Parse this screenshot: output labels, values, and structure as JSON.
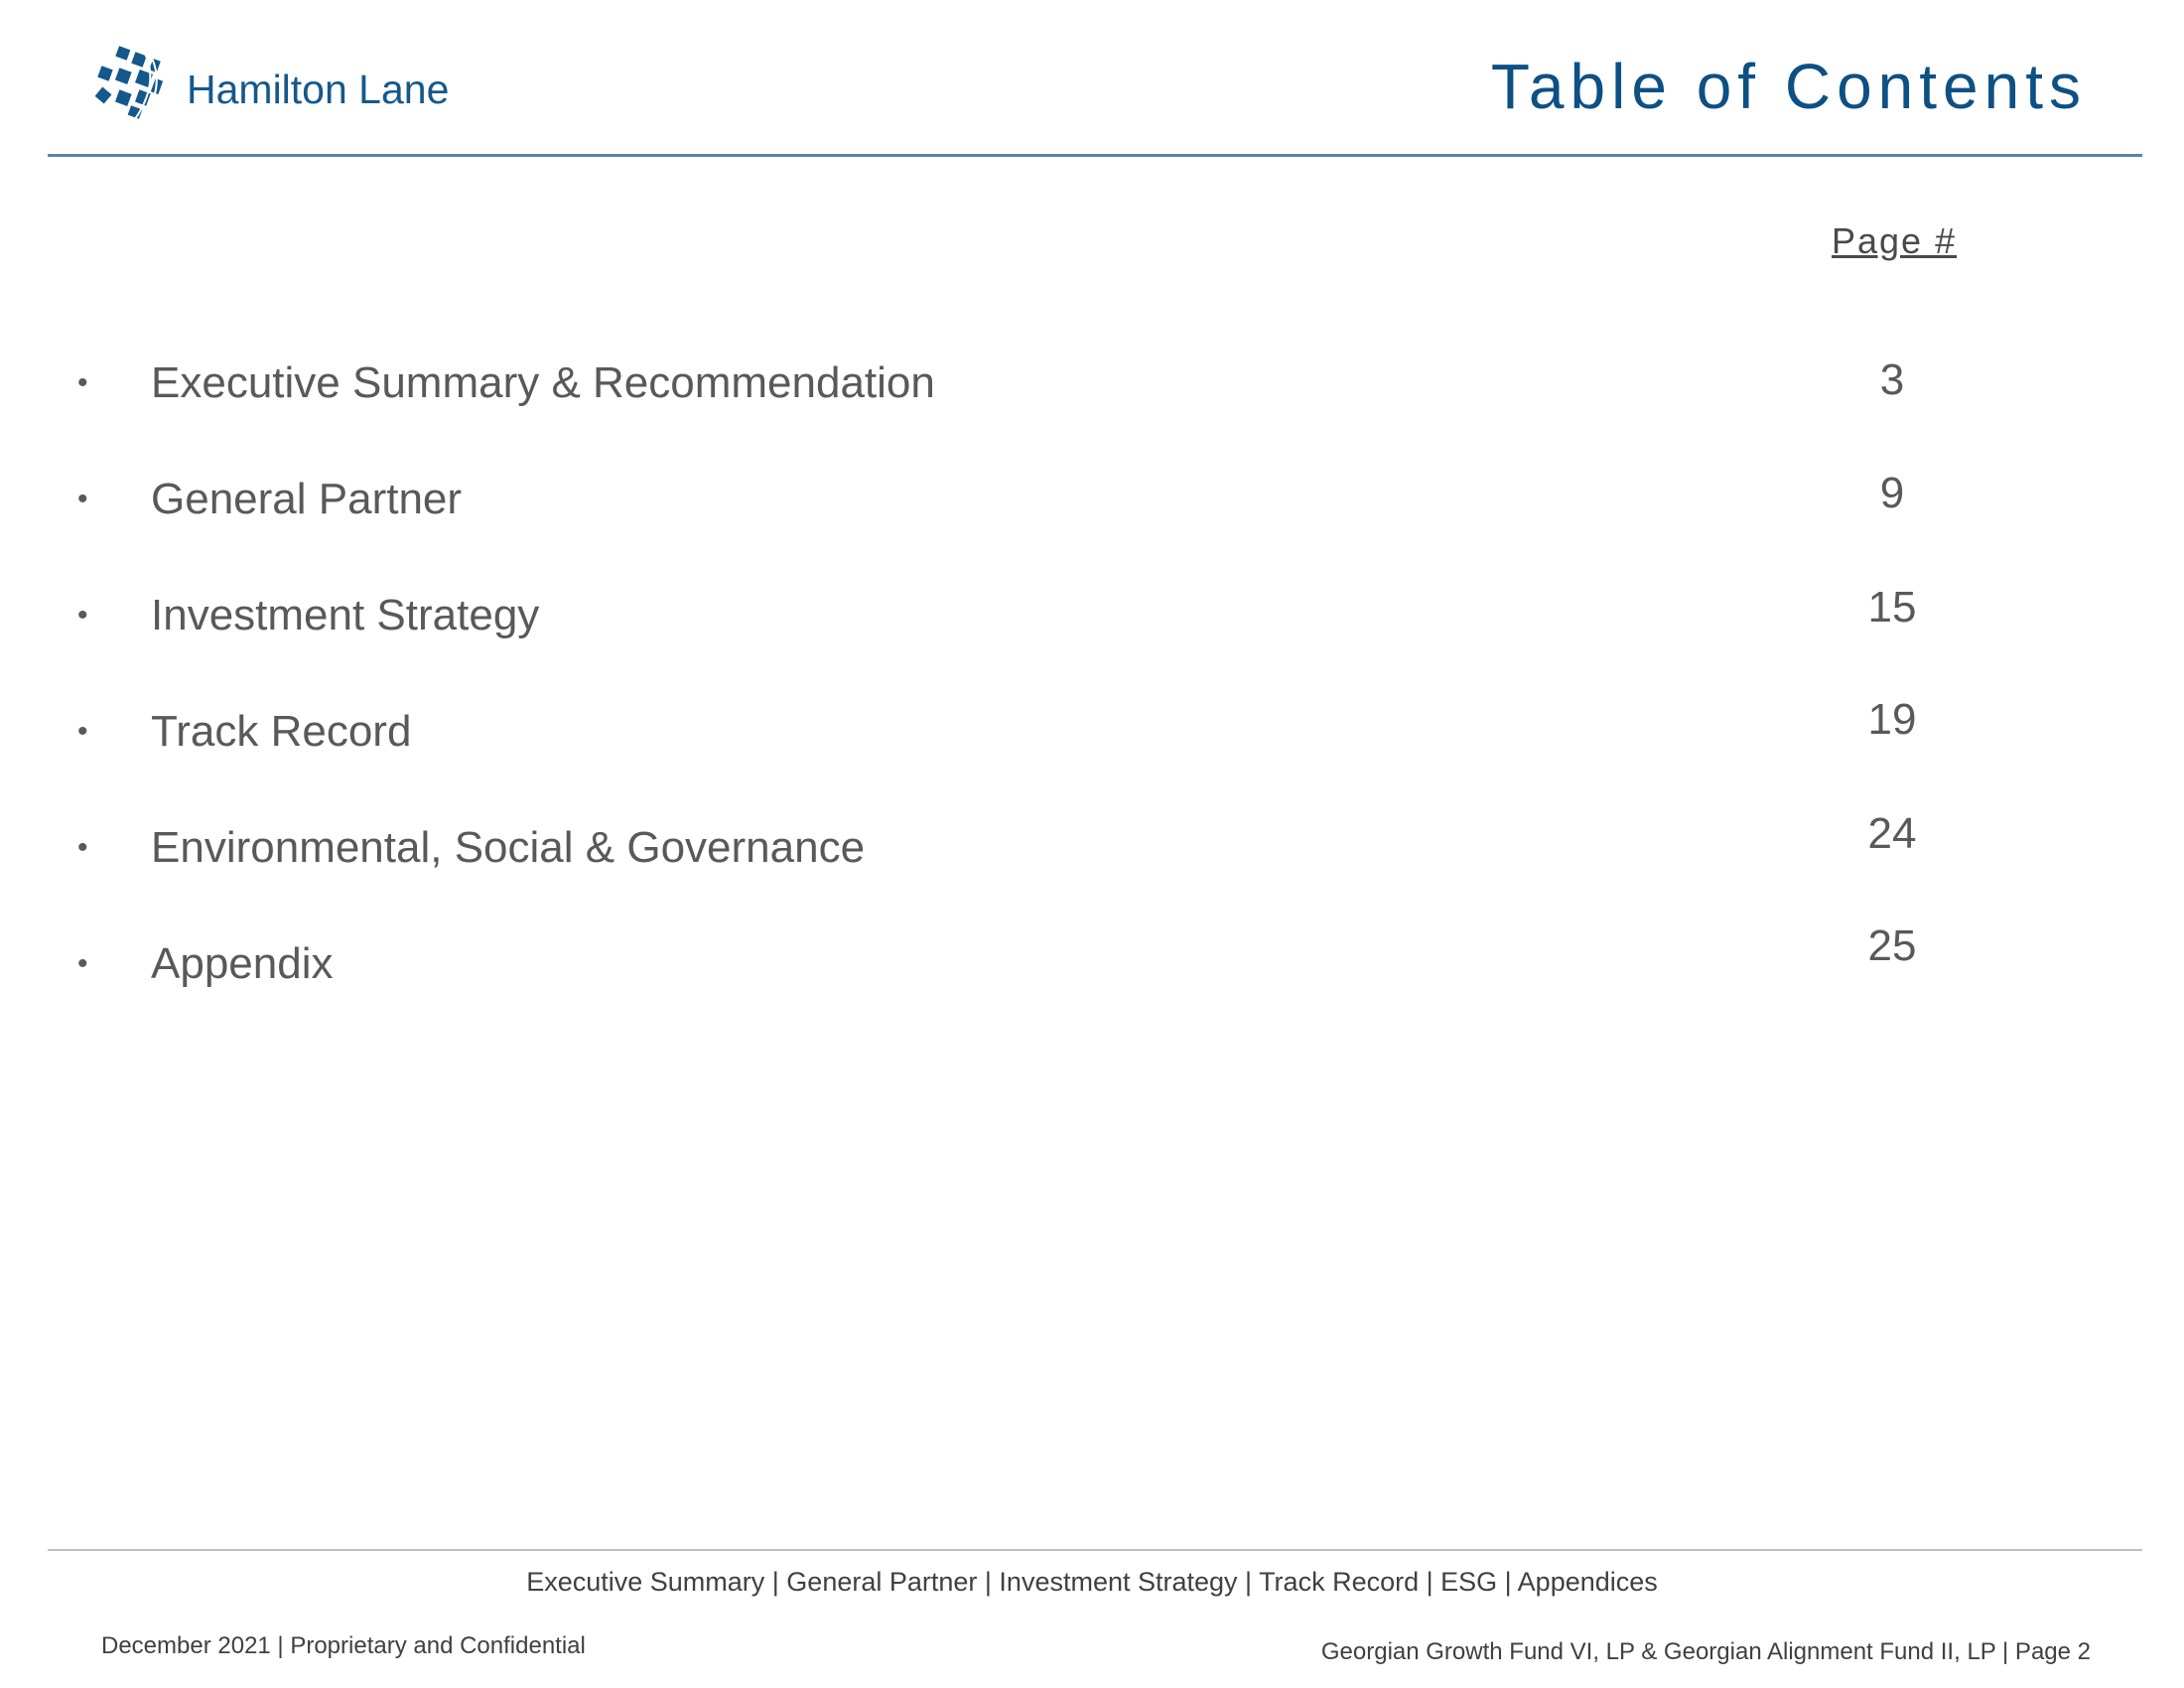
{
  "header": {
    "logo_text": "Hamilton Lane",
    "title": "Table of Contents",
    "brand_color": "#0d5084"
  },
  "toc": {
    "page_header": "Page #",
    "items": [
      {
        "label": "Executive Summary & Recommendation",
        "page": "3"
      },
      {
        "label": "General Partner",
        "page": "9"
      },
      {
        "label": "Investment Strategy",
        "page": "15"
      },
      {
        "label": "Track Record",
        "page": "19"
      },
      {
        "label": "Environmental, Social & Governance",
        "page": "24"
      },
      {
        "label": "Appendix",
        "page": "25"
      }
    ]
  },
  "footer": {
    "nav": "Executive Summary | General Partner | Investment Strategy | Track Record | ESG | Appendices",
    "left": "December 2021 | Proprietary and Confidential",
    "right": "Georgian Growth Fund VI, LP & Georgian Alignment Fund II, LP | Page 2"
  }
}
